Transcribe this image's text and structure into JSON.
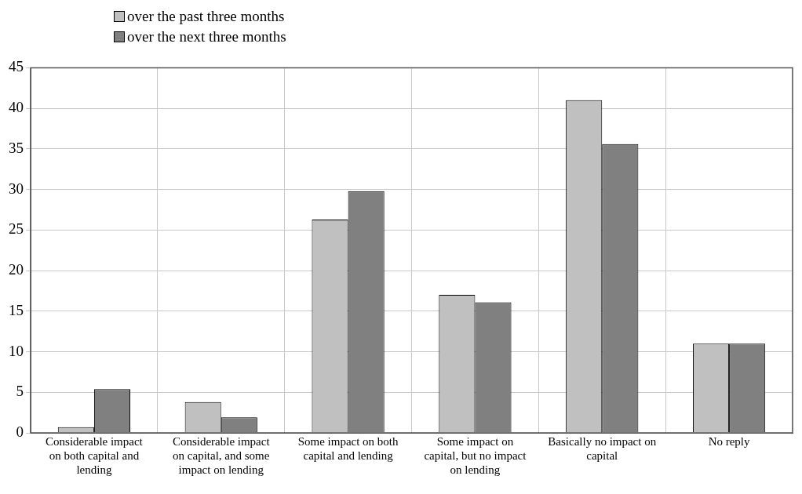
{
  "chart_data": {
    "type": "bar",
    "categories": [
      "Considerable impact on both capital and lending",
      "Considerable impact on capital, and some impact on lending",
      "Some impact on both capital and lending",
      "Some impact on capital, but no impact on lending",
      "Basically no impact on capital",
      "No reply"
    ],
    "series": [
      {
        "name": "over the past three months",
        "color": "#c0c0c0",
        "values": [
          0.7,
          3.8,
          26.3,
          17.0,
          41.0,
          11.0
        ]
      },
      {
        "name": "over the next three months",
        "color": "#808080",
        "values": [
          5.4,
          1.9,
          29.8,
          16.1,
          35.6,
          11.0
        ]
      }
    ],
    "ylim": [
      0,
      45
    ],
    "yticks": [
      0,
      5,
      10,
      15,
      20,
      25,
      30,
      35,
      40,
      45
    ],
    "grid": true,
    "legend": "top left"
  }
}
